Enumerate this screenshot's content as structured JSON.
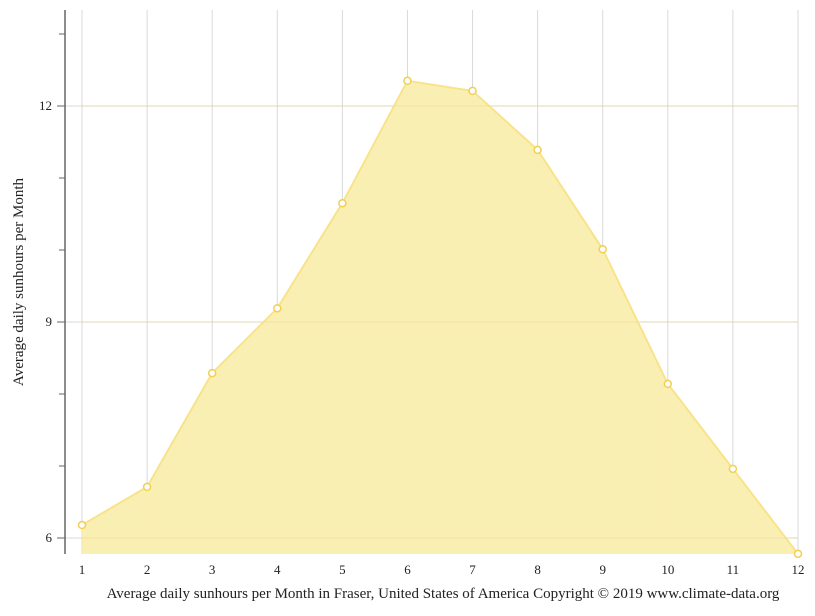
{
  "chart_data": {
    "type": "area",
    "title": "Average daily sunhours per Month in Fraser, United States of America Copyright © 2019 www.climate-data.org",
    "xlabel": "",
    "ylabel": "Average daily sunhours per Month",
    "categories": [
      "1",
      "2",
      "3",
      "4",
      "5",
      "6",
      "7",
      "8",
      "9",
      "10",
      "11",
      "12"
    ],
    "series": [
      {
        "name": "Average daily sunhours",
        "values": [
          6.18,
          6.71,
          8.29,
          9.19,
          10.65,
          12.35,
          12.21,
          11.39,
          10.01,
          8.14,
          6.96,
          5.78
        ]
      }
    ],
    "ylim": [
      5.78,
      13.33
    ],
    "y_major_ticks": [
      6,
      9,
      12
    ],
    "y_minor_ticks": [
      7,
      8,
      10,
      11,
      13
    ],
    "grid": true,
    "legend": "none"
  },
  "colors": {
    "fill": "#faeeaf",
    "line": "#f9e38a",
    "marker_stroke": "#f3cf4e",
    "marker_fill": "#ffffff",
    "grid": "#d9d9d9",
    "axis": "#666666"
  }
}
